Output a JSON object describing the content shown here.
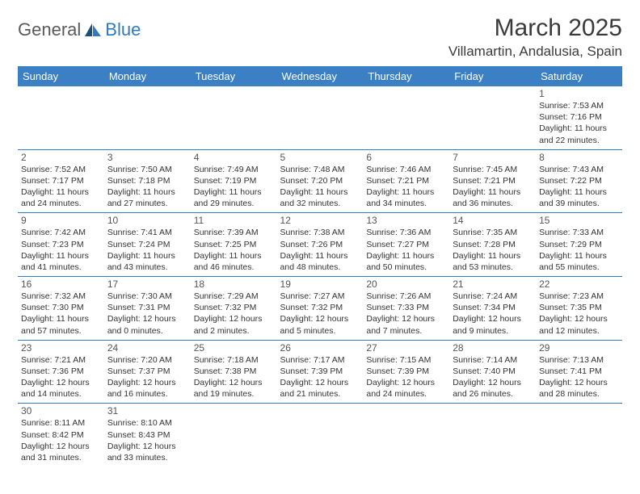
{
  "logo": {
    "part1": "General",
    "part2": "Blue"
  },
  "title": "March 2025",
  "location": "Villamartin, Andalusia, Spain",
  "colors": {
    "header_bg": "#3b7fc4",
    "header_text": "#ffffff",
    "border": "#2f7bbf",
    "logo_gray": "#5a5a5a",
    "logo_blue": "#2f7bbf",
    "text": "#333333"
  },
  "day_headers": [
    "Sunday",
    "Monday",
    "Tuesday",
    "Wednesday",
    "Thursday",
    "Friday",
    "Saturday"
  ],
  "weeks": [
    [
      null,
      null,
      null,
      null,
      null,
      null,
      {
        "n": "1",
        "sr": "Sunrise: 7:53 AM",
        "ss": "Sunset: 7:16 PM",
        "d1": "Daylight: 11 hours",
        "d2": "and 22 minutes."
      }
    ],
    [
      {
        "n": "2",
        "sr": "Sunrise: 7:52 AM",
        "ss": "Sunset: 7:17 PM",
        "d1": "Daylight: 11 hours",
        "d2": "and 24 minutes."
      },
      {
        "n": "3",
        "sr": "Sunrise: 7:50 AM",
        "ss": "Sunset: 7:18 PM",
        "d1": "Daylight: 11 hours",
        "d2": "and 27 minutes."
      },
      {
        "n": "4",
        "sr": "Sunrise: 7:49 AM",
        "ss": "Sunset: 7:19 PM",
        "d1": "Daylight: 11 hours",
        "d2": "and 29 minutes."
      },
      {
        "n": "5",
        "sr": "Sunrise: 7:48 AM",
        "ss": "Sunset: 7:20 PM",
        "d1": "Daylight: 11 hours",
        "d2": "and 32 minutes."
      },
      {
        "n": "6",
        "sr": "Sunrise: 7:46 AM",
        "ss": "Sunset: 7:21 PM",
        "d1": "Daylight: 11 hours",
        "d2": "and 34 minutes."
      },
      {
        "n": "7",
        "sr": "Sunrise: 7:45 AM",
        "ss": "Sunset: 7:21 PM",
        "d1": "Daylight: 11 hours",
        "d2": "and 36 minutes."
      },
      {
        "n": "8",
        "sr": "Sunrise: 7:43 AM",
        "ss": "Sunset: 7:22 PM",
        "d1": "Daylight: 11 hours",
        "d2": "and 39 minutes."
      }
    ],
    [
      {
        "n": "9",
        "sr": "Sunrise: 7:42 AM",
        "ss": "Sunset: 7:23 PM",
        "d1": "Daylight: 11 hours",
        "d2": "and 41 minutes."
      },
      {
        "n": "10",
        "sr": "Sunrise: 7:41 AM",
        "ss": "Sunset: 7:24 PM",
        "d1": "Daylight: 11 hours",
        "d2": "and 43 minutes."
      },
      {
        "n": "11",
        "sr": "Sunrise: 7:39 AM",
        "ss": "Sunset: 7:25 PM",
        "d1": "Daylight: 11 hours",
        "d2": "and 46 minutes."
      },
      {
        "n": "12",
        "sr": "Sunrise: 7:38 AM",
        "ss": "Sunset: 7:26 PM",
        "d1": "Daylight: 11 hours",
        "d2": "and 48 minutes."
      },
      {
        "n": "13",
        "sr": "Sunrise: 7:36 AM",
        "ss": "Sunset: 7:27 PM",
        "d1": "Daylight: 11 hours",
        "d2": "and 50 minutes."
      },
      {
        "n": "14",
        "sr": "Sunrise: 7:35 AM",
        "ss": "Sunset: 7:28 PM",
        "d1": "Daylight: 11 hours",
        "d2": "and 53 minutes."
      },
      {
        "n": "15",
        "sr": "Sunrise: 7:33 AM",
        "ss": "Sunset: 7:29 PM",
        "d1": "Daylight: 11 hours",
        "d2": "and 55 minutes."
      }
    ],
    [
      {
        "n": "16",
        "sr": "Sunrise: 7:32 AM",
        "ss": "Sunset: 7:30 PM",
        "d1": "Daylight: 11 hours",
        "d2": "and 57 minutes."
      },
      {
        "n": "17",
        "sr": "Sunrise: 7:30 AM",
        "ss": "Sunset: 7:31 PM",
        "d1": "Daylight: 12 hours",
        "d2": "and 0 minutes."
      },
      {
        "n": "18",
        "sr": "Sunrise: 7:29 AM",
        "ss": "Sunset: 7:32 PM",
        "d1": "Daylight: 12 hours",
        "d2": "and 2 minutes."
      },
      {
        "n": "19",
        "sr": "Sunrise: 7:27 AM",
        "ss": "Sunset: 7:32 PM",
        "d1": "Daylight: 12 hours",
        "d2": "and 5 minutes."
      },
      {
        "n": "20",
        "sr": "Sunrise: 7:26 AM",
        "ss": "Sunset: 7:33 PM",
        "d1": "Daylight: 12 hours",
        "d2": "and 7 minutes."
      },
      {
        "n": "21",
        "sr": "Sunrise: 7:24 AM",
        "ss": "Sunset: 7:34 PM",
        "d1": "Daylight: 12 hours",
        "d2": "and 9 minutes."
      },
      {
        "n": "22",
        "sr": "Sunrise: 7:23 AM",
        "ss": "Sunset: 7:35 PM",
        "d1": "Daylight: 12 hours",
        "d2": "and 12 minutes."
      }
    ],
    [
      {
        "n": "23",
        "sr": "Sunrise: 7:21 AM",
        "ss": "Sunset: 7:36 PM",
        "d1": "Daylight: 12 hours",
        "d2": "and 14 minutes."
      },
      {
        "n": "24",
        "sr": "Sunrise: 7:20 AM",
        "ss": "Sunset: 7:37 PM",
        "d1": "Daylight: 12 hours",
        "d2": "and 16 minutes."
      },
      {
        "n": "25",
        "sr": "Sunrise: 7:18 AM",
        "ss": "Sunset: 7:38 PM",
        "d1": "Daylight: 12 hours",
        "d2": "and 19 minutes."
      },
      {
        "n": "26",
        "sr": "Sunrise: 7:17 AM",
        "ss": "Sunset: 7:39 PM",
        "d1": "Daylight: 12 hours",
        "d2": "and 21 minutes."
      },
      {
        "n": "27",
        "sr": "Sunrise: 7:15 AM",
        "ss": "Sunset: 7:39 PM",
        "d1": "Daylight: 12 hours",
        "d2": "and 24 minutes."
      },
      {
        "n": "28",
        "sr": "Sunrise: 7:14 AM",
        "ss": "Sunset: 7:40 PM",
        "d1": "Daylight: 12 hours",
        "d2": "and 26 minutes."
      },
      {
        "n": "29",
        "sr": "Sunrise: 7:13 AM",
        "ss": "Sunset: 7:41 PM",
        "d1": "Daylight: 12 hours",
        "d2": "and 28 minutes."
      }
    ],
    [
      {
        "n": "30",
        "sr": "Sunrise: 8:11 AM",
        "ss": "Sunset: 8:42 PM",
        "d1": "Daylight: 12 hours",
        "d2": "and 31 minutes."
      },
      {
        "n": "31",
        "sr": "Sunrise: 8:10 AM",
        "ss": "Sunset: 8:43 PM",
        "d1": "Daylight: 12 hours",
        "d2": "and 33 minutes."
      },
      null,
      null,
      null,
      null,
      null
    ]
  ]
}
